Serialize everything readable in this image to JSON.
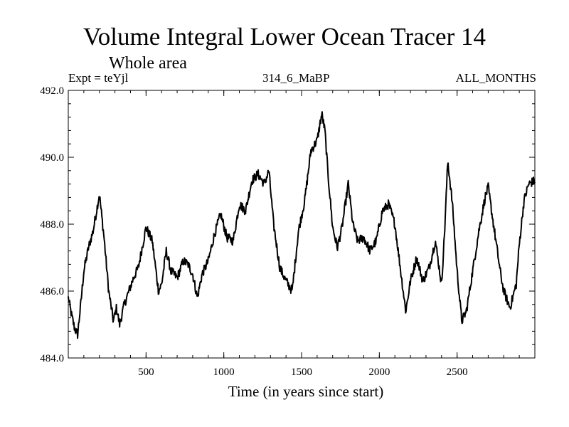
{
  "chart_data": {
    "type": "line",
    "title": "Volume Integral Lower Ocean Tracer 14",
    "subtitle": "Whole area",
    "expt_label": "Expt = teYjl",
    "run_label": "314_6_MaBP",
    "period_label": "ALL_MONTHS",
    "xlabel": "Time (in years since start)",
    "ylabel": "",
    "xlim": [
      0,
      3000
    ],
    "ylim": [
      484.0,
      492.0
    ],
    "x_ticks": [
      500,
      1000,
      1500,
      2000,
      2500
    ],
    "x_tick_labels": [
      "500",
      "1000",
      "1500",
      "2000",
      "2500"
    ],
    "y_ticks": [
      484,
      486,
      488,
      490,
      492
    ],
    "y_tick_labels": [
      "484.0",
      "486.0",
      "488.0",
      "490.0",
      "492.0"
    ],
    "series": [
      {
        "name": "Tracer 14",
        "color": "#000000",
        "x": [
          0,
          20,
          40,
          60,
          80,
          100,
          130,
          160,
          200,
          230,
          260,
          290,
          310,
          330,
          360,
          390,
          420,
          450,
          500,
          540,
          580,
          600,
          630,
          660,
          700,
          740,
          770,
          800,
          830,
          860,
          900,
          940,
          980,
          1020,
          1060,
          1100,
          1140,
          1180,
          1220,
          1260,
          1290,
          1320,
          1360,
          1400,
          1440,
          1480,
          1520,
          1560,
          1600,
          1630,
          1650,
          1670,
          1700,
          1730,
          1760,
          1800,
          1830,
          1860,
          1900,
          1940,
          1980,
          2020,
          2060,
          2100,
          2140,
          2170,
          2200,
          2240,
          2280,
          2320,
          2360,
          2400,
          2420,
          2440,
          2470,
          2500,
          2530,
          2560,
          2600,
          2640,
          2680,
          2700,
          2740,
          2780,
          2800,
          2840,
          2880,
          2900,
          2930,
          2960,
          3000
        ],
        "y": [
          485.8,
          485.3,
          484.9,
          484.7,
          485.6,
          486.6,
          487.3,
          487.8,
          488.9,
          487.6,
          486.0,
          485.1,
          485.5,
          485.0,
          485.6,
          486.0,
          486.4,
          486.7,
          487.9,
          487.5,
          486.0,
          486.2,
          487.2,
          486.6,
          486.4,
          486.9,
          486.8,
          486.5,
          485.8,
          486.5,
          486.9,
          487.7,
          488.3,
          487.6,
          487.5,
          488.6,
          488.4,
          489.3,
          489.5,
          489.2,
          489.6,
          488.0,
          486.7,
          486.3,
          486.0,
          487.8,
          488.7,
          490.2,
          490.5,
          491.3,
          490.8,
          489.5,
          487.9,
          487.3,
          487.9,
          489.2,
          488.0,
          487.5,
          487.6,
          487.2,
          487.5,
          488.4,
          488.6,
          488.0,
          486.5,
          485.4,
          486.3,
          487.0,
          486.3,
          486.7,
          487.5,
          486.2,
          487.8,
          489.9,
          488.6,
          486.6,
          485.1,
          485.4,
          486.6,
          487.8,
          488.8,
          489.1,
          487.8,
          486.5,
          486.0,
          485.5,
          486.2,
          487.4,
          488.7,
          489.2,
          489.3
        ]
      }
    ]
  }
}
